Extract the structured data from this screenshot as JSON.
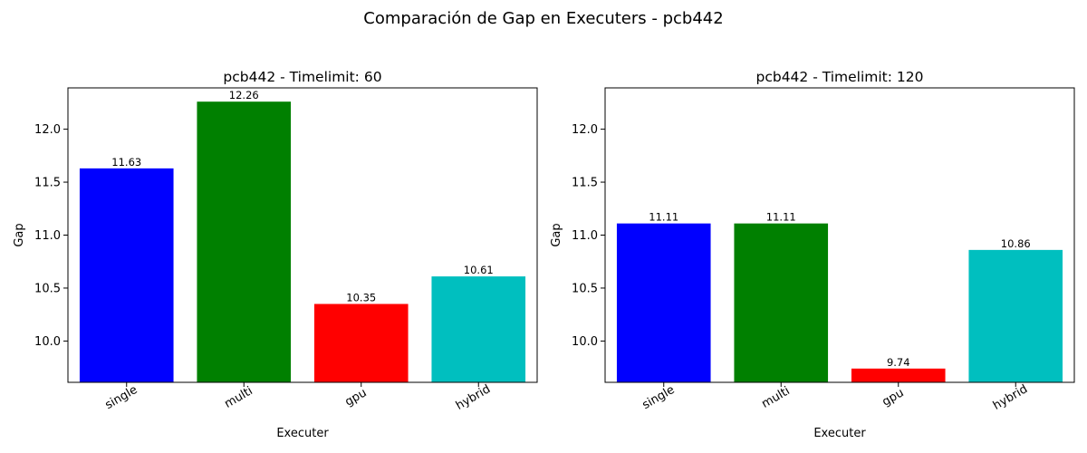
{
  "figure": {
    "suptitle": "Comparación de Gap en Executers - pcb442"
  },
  "chart_data": [
    {
      "type": "bar",
      "title": "pcb442 - Timelimit: 60",
      "xlabel": "Executer",
      "ylabel": "Gap",
      "categories": [
        "single",
        "multi",
        "gpu",
        "hybrid"
      ],
      "values": [
        11.63,
        12.26,
        10.35,
        10.61
      ],
      "data_labels": [
        "11.63",
        "12.26",
        "10.35",
        "10.61"
      ],
      "colors": [
        "#0000ff",
        "#008000",
        "#ff0000",
        "#00bfbf"
      ],
      "ylim": [
        9.61,
        12.39
      ],
      "yticks": [
        10.0,
        10.5,
        11.0,
        11.5,
        12.0
      ],
      "ytick_labels": [
        "10.0",
        "10.5",
        "11.0",
        "11.5",
        "12.0"
      ],
      "grid": false,
      "xtick_rotation": 30
    },
    {
      "type": "bar",
      "title": "pcb442 - Timelimit: 120",
      "xlabel": "Executer",
      "ylabel": "Gap",
      "categories": [
        "single",
        "multi",
        "gpu",
        "hybrid"
      ],
      "values": [
        11.11,
        11.11,
        9.74,
        10.86
      ],
      "data_labels": [
        "11.11",
        "11.11",
        "9.74",
        "10.86"
      ],
      "colors": [
        "#0000ff",
        "#008000",
        "#ff0000",
        "#00bfbf"
      ],
      "ylim": [
        9.61,
        12.39
      ],
      "yticks": [
        10.0,
        10.5,
        11.0,
        11.5,
        12.0
      ],
      "ytick_labels": [
        "10.0",
        "10.5",
        "11.0",
        "11.5",
        "12.0"
      ],
      "grid": false,
      "xtick_rotation": 30
    }
  ]
}
